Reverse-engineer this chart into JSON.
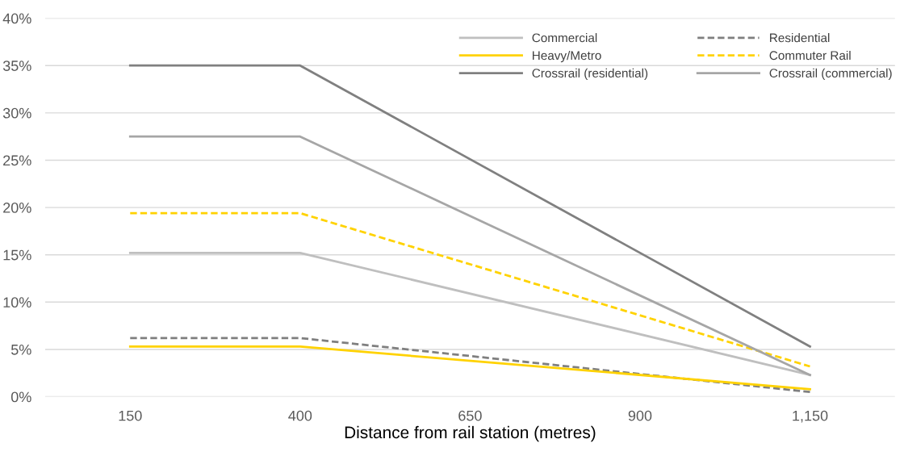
{
  "chart_data": {
    "type": "line",
    "xlabel": "Distance from rail station (metres)",
    "xlim": [
      25,
      1275
    ],
    "xticks": [
      150,
      400,
      650,
      900,
      {
        "value": 1150,
        "label": "1,150"
      }
    ],
    "ylim": [
      0,
      40
    ],
    "yticks": [
      {
        "value": 0,
        "label": "0%"
      },
      {
        "value": 5,
        "label": "5%"
      },
      {
        "value": 10,
        "label": "10%"
      },
      {
        "value": 15,
        "label": "15%"
      },
      {
        "value": 20,
        "label": "20%"
      },
      {
        "value": 25,
        "label": "25%"
      },
      {
        "value": 30,
        "label": "30%"
      },
      {
        "value": 35,
        "label": "35%"
      },
      {
        "value": 40,
        "label": "40%"
      }
    ],
    "grid": "y",
    "legend": "top right",
    "marker": "none",
    "series": [
      {
        "name": "Commercial",
        "color": "#bfbfbf",
        "x": [
          150,
          400,
          1150
        ],
        "values": [
          15.2,
          15.2,
          2.3
        ]
      },
      {
        "name": "Residential",
        "color": "#7f7f7f",
        "line_style": "dashed",
        "x": [
          150,
          400,
          1150
        ],
        "values": [
          6.2,
          6.2,
          0.5
        ]
      },
      {
        "name": "Heavy/Metro",
        "color": "#ffd200",
        "x": [
          150,
          400,
          1150
        ],
        "values": [
          5.3,
          5.3,
          0.8
        ]
      },
      {
        "name": "Commuter Rail",
        "color": "#ffd200",
        "line_style": "dashed",
        "x": [
          150,
          400,
          1150
        ],
        "values": [
          19.4,
          19.4,
          3.2
        ]
      },
      {
        "name": "Crossrail (residential)",
        "color": "#808080",
        "x": [
          150,
          400,
          1150
        ],
        "values": [
          35,
          35,
          5.3
        ]
      },
      {
        "name": "Crossrail (commercial)",
        "color": "#a6a6a6",
        "x": [
          150,
          400,
          1150
        ],
        "values": [
          27.5,
          27.5,
          2.3
        ]
      }
    ]
  }
}
